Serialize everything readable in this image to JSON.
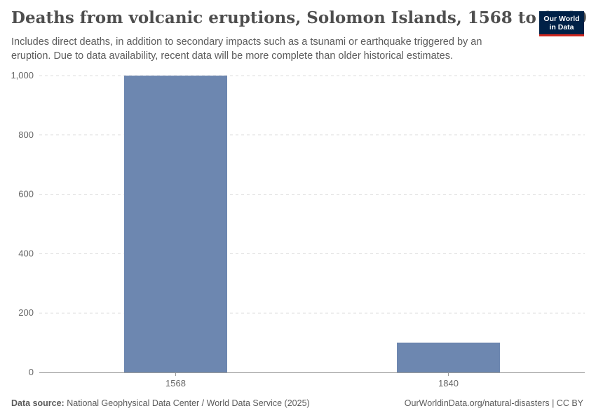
{
  "header": {
    "title": "Deaths from volcanic eruptions, Solomon Islands, 1568 to 1840",
    "subtitle": "Includes direct deaths, in addition to secondary impacts such as a tsunami or earthquake triggered by an eruption. Due to data availability, recent data will be more complete than older historical estimates."
  },
  "logo": {
    "line1": "Our World",
    "line2": "in Data"
  },
  "footer": {
    "source_label": "Data source:",
    "source_text": "National Geophysical Data Center / World Data Service (2025)",
    "right_text": "OurWorldinData.org/natural-disasters | CC BY"
  },
  "colors": {
    "bar": "#6d87b0",
    "grid": "#dddddd",
    "axis": "#999999",
    "logo_bg": "#002147",
    "logo_accent": "#ce261e"
  },
  "chart_data": {
    "type": "bar",
    "categories": [
      "1568",
      "1840"
    ],
    "values": [
      1000,
      100
    ],
    "ylim": [
      0,
      1000
    ],
    "yticks": [
      0,
      200,
      400,
      600,
      800,
      1000
    ],
    "ytick_labels": [
      "0",
      "200",
      "400",
      "600",
      "800",
      "1,000"
    ],
    "grid": true
  }
}
